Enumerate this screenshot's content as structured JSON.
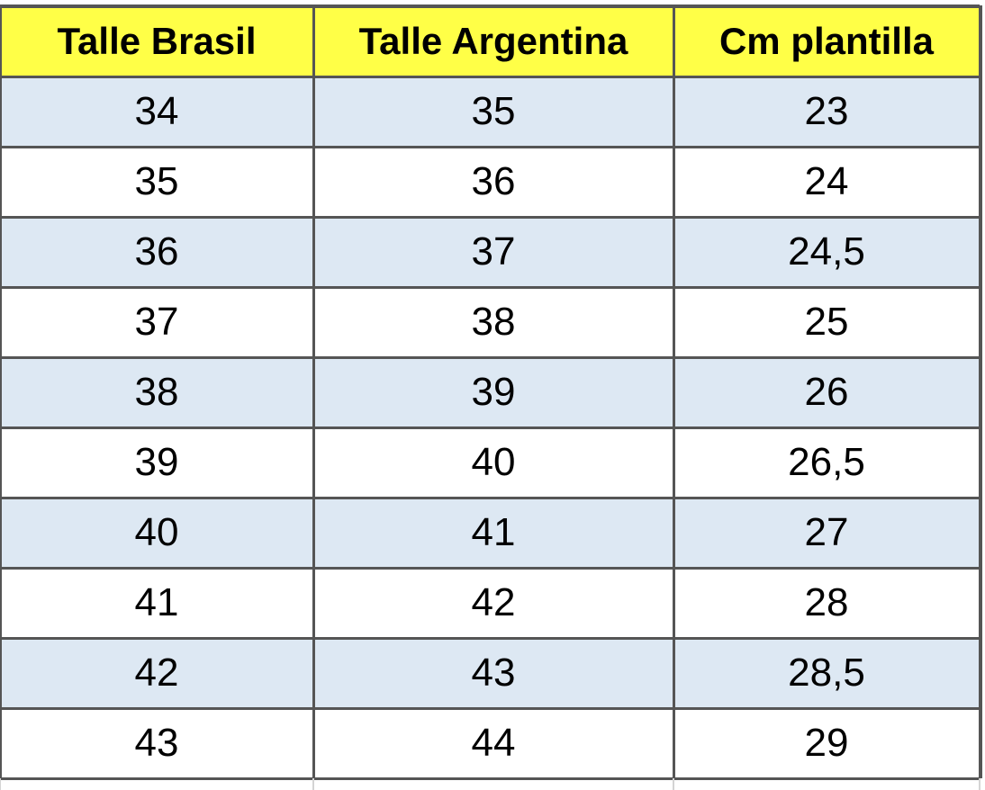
{
  "table": {
    "header": [
      "Talle Brasil",
      "Talle Argentina",
      "Cm plantilla"
    ],
    "rows": [
      [
        "34",
        "35",
        "23"
      ],
      [
        "35",
        "36",
        "24"
      ],
      [
        "36",
        "37",
        "24,5"
      ],
      [
        "37",
        "38",
        "25"
      ],
      [
        "38",
        "39",
        "26"
      ],
      [
        "39",
        "40",
        "26,5"
      ],
      [
        "40",
        "41",
        "27"
      ],
      [
        "41",
        "42",
        "28"
      ],
      [
        "42",
        "43",
        "28,5"
      ],
      [
        "43",
        "44",
        "29"
      ]
    ]
  }
}
